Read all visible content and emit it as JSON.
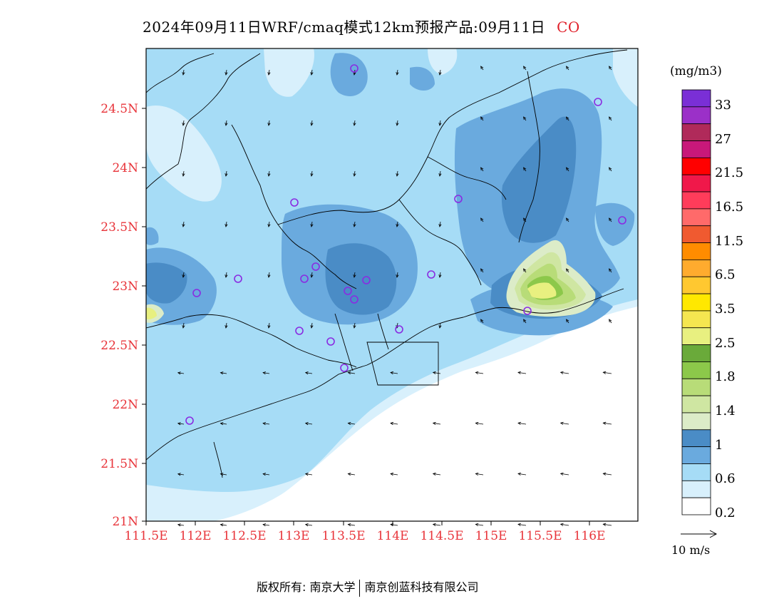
{
  "title": {
    "text": "2024年09月11日WRF/cmaq模式12km预报产品:09月11日",
    "pollutant": "CO"
  },
  "axes": {
    "lat_labels": [
      "24.5N",
      "24N",
      "23.5N",
      "23N",
      "22.5N",
      "22N",
      "21.5N",
      "21N"
    ],
    "lon_labels": [
      "111.5E",
      "112E",
      "112.5E",
      "113E",
      "113.5E",
      "114E",
      "114.5E",
      "115E",
      "115.5E",
      "116E"
    ]
  },
  "colorbar": {
    "unit": "(mg/m3)",
    "labels": [
      "33",
      "27",
      "21.5",
      "16.5",
      "11.5",
      "6.5",
      "3.5",
      "2.5",
      "1.8",
      "1.4",
      "1",
      "0.6",
      "0.2"
    ],
    "colors_top_to_bottom": [
      "#7a2fd6",
      "#9b30c8",
      "#b02a5a",
      "#c8187a",
      "#ff0000",
      "#f0184a",
      "#ff3c5a",
      "#ff6a6a",
      "#f05a30",
      "#ff8c00",
      "#ffab2e",
      "#ffc830",
      "#ffe800",
      "#f5e650",
      "#e8f080",
      "#6aaa3a",
      "#8cc84a",
      "#b8dc78",
      "#cfe6a2",
      "#dcecc8",
      "#4a8cc6",
      "#6aaade",
      "#a6dcf6",
      "#d8f0fc",
      "#ffffff"
    ]
  },
  "wind_key": {
    "label": "10 m/s"
  },
  "footer": {
    "left": "版权所有: 南京大学",
    "right": "南京创蓝科技有限公司"
  },
  "stations": {
    "marker": "o",
    "count": 19
  }
}
